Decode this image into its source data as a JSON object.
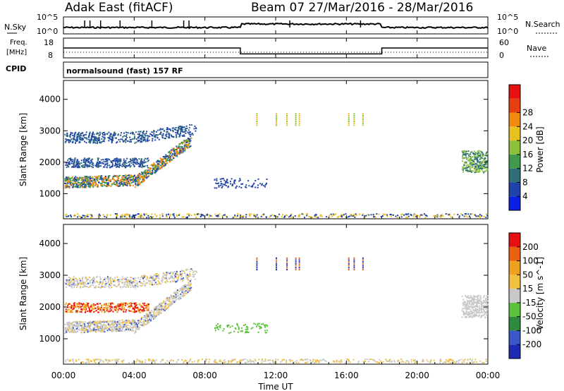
{
  "header": {
    "radar_title": "Adak East (fitACF)",
    "beam_date": "Beam 07  27/Mar/2016 - 28/Mar/2016"
  },
  "noise_panel": {
    "left_label": "N.Sky",
    "right_label": "N.Search",
    "left_ticks": [
      "10^5",
      "10^0"
    ],
    "right_ticks": [
      "10^5",
      "10^0"
    ]
  },
  "freq_panel": {
    "left_label_line1": "Freq.",
    "left_label_line2": "[MHz]",
    "right_label": "Nave",
    "left_ticks": [
      "18",
      "8"
    ],
    "right_ticks": [
      "60",
      "0"
    ],
    "freq_steps": [
      {
        "start": 0,
        "end": 10,
        "value": 13
      },
      {
        "start": 10,
        "end": 18,
        "value": 10
      },
      {
        "start": 18,
        "end": 24,
        "value": 13
      }
    ]
  },
  "cpid": {
    "label": "CPID",
    "text": "normalsound (fast) 157 RF"
  },
  "chart_data": [
    {
      "type": "heatmap",
      "name": "power",
      "ylabel": "Slant Range [km]",
      "y_ticks": [
        1000,
        2000,
        3000,
        4000
      ],
      "ylim": [
        200,
        4600
      ],
      "xlim": [
        0,
        24
      ],
      "colorbar_label": "Power [dB]",
      "colorbar_ticks": [
        "4",
        "8",
        "12",
        "16",
        "20",
        "24",
        "28"
      ],
      "colorbar_colors": [
        "#0a1ee6",
        "#1f43a8",
        "#2e6f7a",
        "#3f9a4c",
        "#8cc23a",
        "#e8c020",
        "#f08a10",
        "#e64010",
        "#e61010"
      ]
    },
    {
      "type": "heatmap",
      "name": "velocity",
      "ylabel": "Slant Range [km]",
      "y_ticks": [
        1000,
        2000,
        3000,
        4000
      ],
      "ylim": [
        200,
        4600
      ],
      "xlim": [
        0,
        24
      ],
      "colorbar_label": "Velocity [m s^-1]",
      "colorbar_ticks": [
        "200",
        "100",
        "50",
        "15",
        "-15",
        "-50",
        "-100",
        "-200"
      ],
      "colorbar_colors": [
        "#1e2ab4",
        "#3a58c8",
        "#2e8a3c",
        "#5cc23a",
        "#c8c8c8",
        "#f0c040",
        "#f0a020",
        "#e86010",
        "#e61010"
      ],
      "xlabel": "Time UT",
      "x_ticks": [
        "00:00",
        "04:00",
        "08:00",
        "12:00",
        "16:00",
        "20:00",
        "00:00"
      ]
    }
  ],
  "palette": {
    "noise_line": "#000000",
    "grid": "#000000"
  }
}
